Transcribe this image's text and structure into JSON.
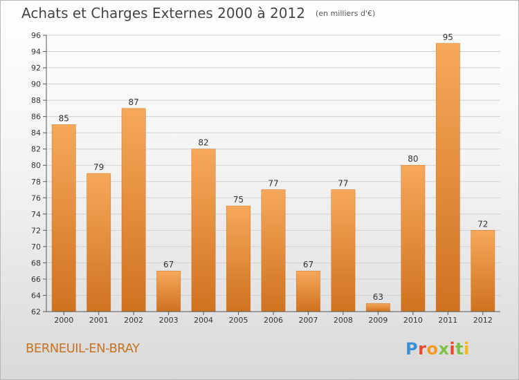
{
  "header": {
    "title": "Achats et Charges Externes 2000 à 2012",
    "subtitle": "(en milliers d'€)"
  },
  "footer": {
    "commune": "BERNEUIL-EN-BRAY",
    "logo_text": "Proxiti",
    "logo_letter_colors": [
      "#3a8fd6",
      "#e8482c",
      "#f29a22",
      "#7cc142",
      "#e8482c",
      "#7cc142",
      "#f0b71e"
    ]
  },
  "colors": {
    "bar_light": "#f6a85a",
    "bar_dark": "#cf7220",
    "gridline": "#cfcfcf",
    "axis": "#555555"
  },
  "chart_data": {
    "type": "bar",
    "title": "Achats et Charges Externes 2000 à 2012",
    "subtitle": "(en milliers d'€)",
    "categories": [
      "2000",
      "2001",
      "2002",
      "2003",
      "2004",
      "2005",
      "2006",
      "2007",
      "2008",
      "2009",
      "2010",
      "2011",
      "2012"
    ],
    "values": [
      85,
      79,
      87,
      67,
      82,
      75,
      77,
      67,
      77,
      63,
      80,
      95,
      72
    ],
    "ylim": [
      62,
      96
    ],
    "yticks": [
      62,
      64,
      66,
      68,
      70,
      72,
      74,
      76,
      78,
      80,
      82,
      84,
      86,
      88,
      90,
      92,
      94,
      96
    ],
    "xlabel": "",
    "ylabel": "",
    "grid": true,
    "data_labels": true
  }
}
